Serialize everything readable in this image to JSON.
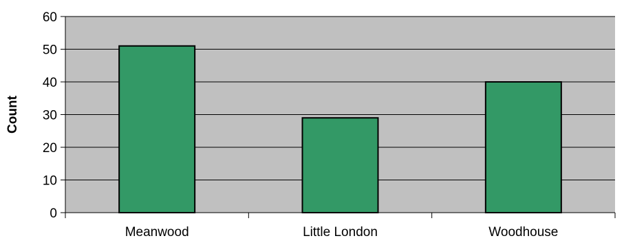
{
  "chart_data": {
    "type": "bar",
    "categories": [
      "Meanwood",
      "Little London",
      "Woodhouse"
    ],
    "values": [
      51,
      29,
      40
    ],
    "title": "",
    "xlabel": "",
    "ylabel": "Count",
    "ylim": [
      0,
      60
    ],
    "yticks": [
      0,
      10,
      20,
      30,
      40,
      50,
      60
    ],
    "grid": true,
    "legend": "none"
  },
  "colors": {
    "bar": "#339966",
    "plot_area": "#c0c0c0",
    "outline": "#000000"
  }
}
